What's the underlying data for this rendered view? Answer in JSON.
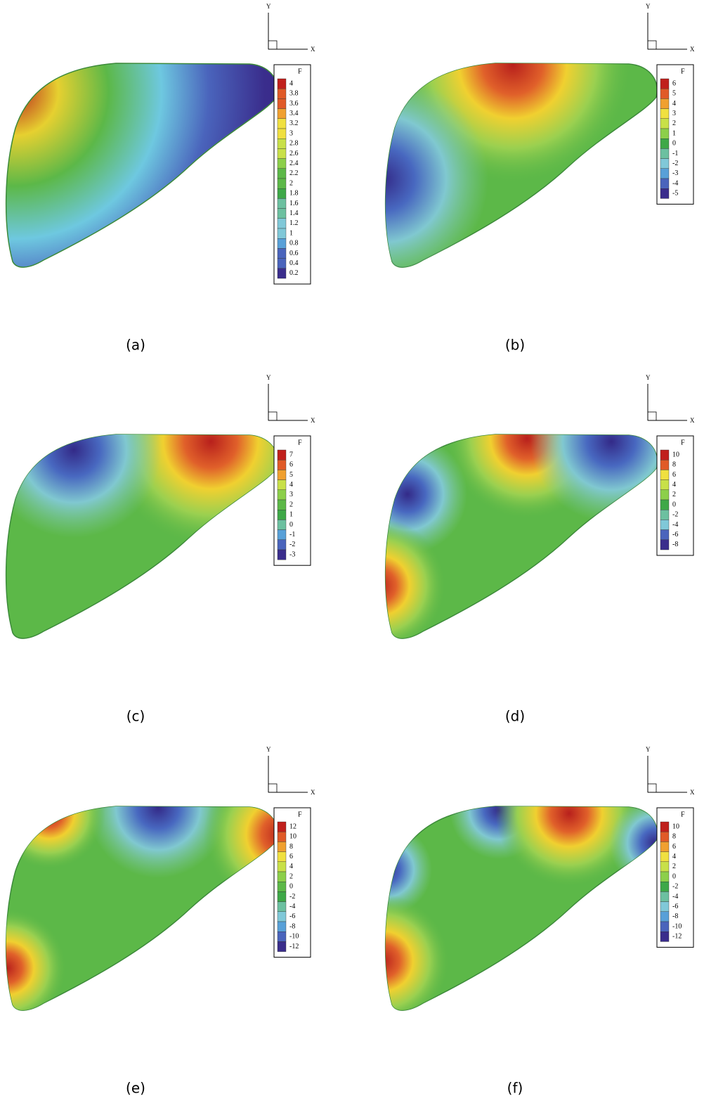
{
  "panels": [
    {
      "label": "(a)",
      "axes": {
        "y": "Y",
        "x": "X"
      },
      "legend": {
        "title": "F",
        "labels": [
          "4",
          "3.8",
          "3.6",
          "3.4",
          "3.2",
          "3",
          "2.8",
          "2.6",
          "2.4",
          "2.2",
          "2",
          "1.8",
          "1.6",
          "1.4",
          "1.2",
          "1",
          "0.8",
          "0.6",
          "0.4",
          "0.2"
        ]
      }
    },
    {
      "label": "(b)",
      "axes": {
        "y": "Y",
        "x": "X"
      },
      "legend": {
        "title": "F",
        "labels": [
          "6",
          "5",
          "4",
          "3",
          "2",
          "1",
          "0",
          "-1",
          "-2",
          "-3",
          "-4",
          "-5"
        ]
      }
    },
    {
      "label": "(c)",
      "axes": {
        "y": "Y",
        "x": "X"
      },
      "legend": {
        "title": "F",
        "labels": [
          "7",
          "6",
          "5",
          "4",
          "3",
          "2",
          "1",
          "0",
          "-1",
          "-2",
          "-3"
        ]
      }
    },
    {
      "label": "(d)",
      "axes": {
        "y": "Y",
        "x": "X"
      },
      "legend": {
        "title": "F",
        "labels": [
          "10",
          "8",
          "6",
          "4",
          "2",
          "0",
          "-2",
          "-4",
          "-6",
          "-8"
        ]
      }
    },
    {
      "label": "(e)",
      "axes": {
        "y": "Y",
        "x": "X"
      },
      "legend": {
        "title": "F",
        "labels": [
          "12",
          "10",
          "8",
          "6",
          "4",
          "2",
          "0",
          "-2",
          "-4",
          "-6",
          "-8",
          "-10",
          "-12"
        ]
      }
    },
    {
      "label": "(f)",
      "axes": {
        "y": "Y",
        "x": "X"
      },
      "legend": {
        "title": "F",
        "labels": [
          "10",
          "8",
          "6",
          "4",
          "2",
          "0",
          "-2",
          "-4",
          "-6",
          "-8",
          "-10",
          "-12"
        ]
      }
    }
  ]
}
